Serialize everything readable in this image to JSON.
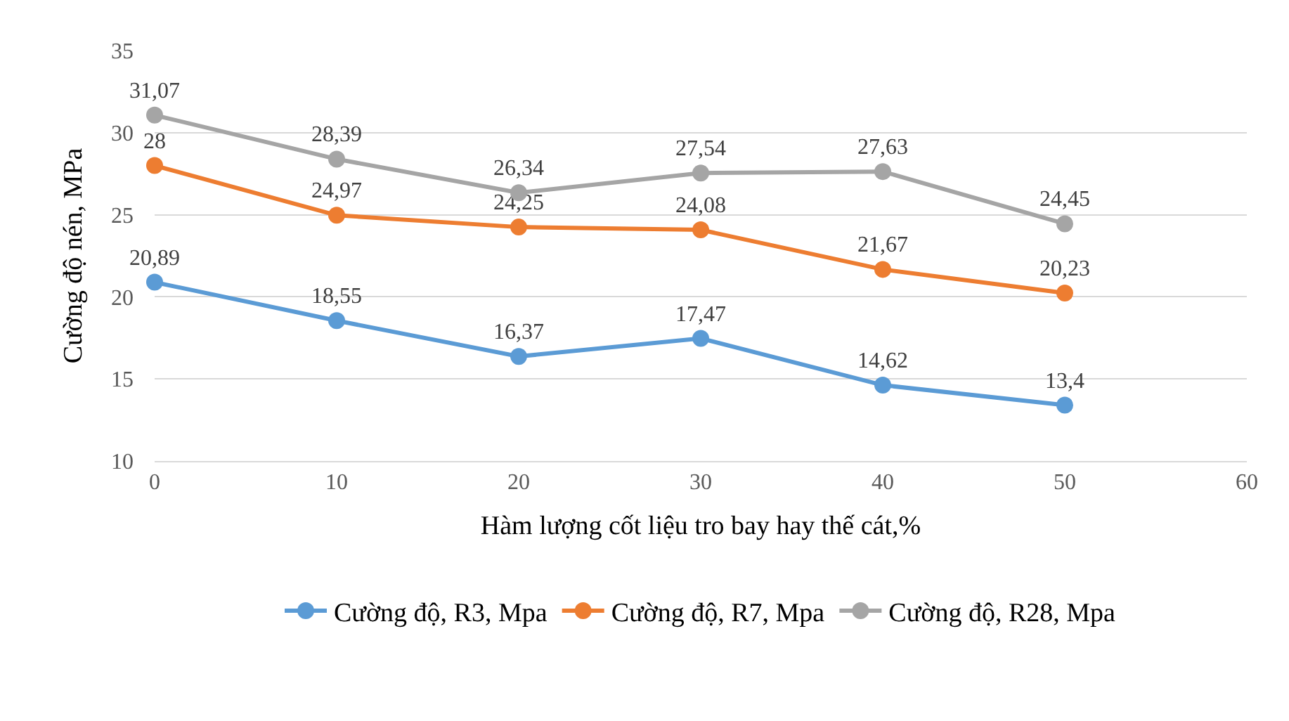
{
  "chart_data": {
    "type": "line",
    "xlabel": "Hàm lượng cốt liệu tro bay hay thế cát,%",
    "ylabel": "Cường độ nén, MPa",
    "x": [
      0,
      10,
      20,
      30,
      40,
      50
    ],
    "series": [
      {
        "name": "Cường độ, R3, Mpa",
        "color": "#5b9bd5",
        "values": [
          20.89,
          18.55,
          16.37,
          17.47,
          14.62,
          13.4
        ],
        "value_labels": [
          "20,89",
          "18,55",
          "16,37",
          "17,47",
          "14,62",
          "13,4"
        ]
      },
      {
        "name": "Cường độ, R7, Mpa",
        "color": "#ed7d31",
        "values": [
          28,
          24.97,
          24.25,
          24.08,
          21.67,
          20.23
        ],
        "value_labels": [
          "28",
          "24,97",
          "24,25",
          "24,08",
          "21,67",
          "20,23"
        ]
      },
      {
        "name": "Cường độ, R28, Mpa",
        "color": "#a5a5a5",
        "values": [
          31.07,
          28.39,
          26.34,
          27.54,
          27.63,
          24.45
        ],
        "value_labels": [
          "31,07",
          "28,39",
          "26,34",
          "27,54",
          "27,63",
          "24,45"
        ]
      }
    ],
    "xlim": [
      0,
      60
    ],
    "xticks": [
      0,
      10,
      20,
      30,
      40,
      50,
      60
    ],
    "ylim": [
      10,
      35
    ],
    "yticks": [
      10,
      15,
      20,
      25,
      30,
      35
    ],
    "grid": "y",
    "legend": "bottom",
    "marker": "circle",
    "line_style": "solid"
  }
}
